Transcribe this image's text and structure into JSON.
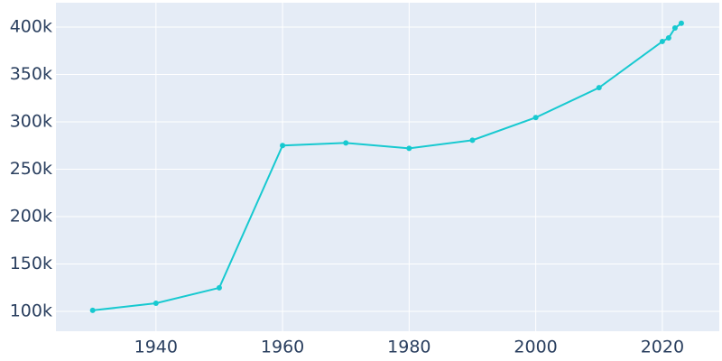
{
  "chart_data": {
    "type": "line",
    "x": [
      1930,
      1940,
      1950,
      1960,
      1970,
      1980,
      1990,
      2000,
      2010,
      2020,
      2021,
      2022,
      2023
    ],
    "series": [
      {
        "color": "#17c9d0",
        "values": [
          101000,
          108500,
          124800,
          275000,
          277700,
          272000,
          280600,
          304500,
          336000,
          384800,
          388600,
          399000,
          404000
        ]
      }
    ],
    "xlim": [
      1924.2,
      2029
    ],
    "xticks": [
      1940,
      1960,
      1980,
      2000,
      2020
    ],
    "ylim": [
      79000,
      425700
    ],
    "yticks": [
      {
        "value": 100000,
        "label": "100k"
      },
      {
        "value": 150000,
        "label": "150k"
      },
      {
        "value": 200000,
        "label": "200k"
      },
      {
        "value": 250000,
        "label": "250k"
      },
      {
        "value": 300000,
        "label": "300k"
      },
      {
        "value": 350000,
        "label": "350k"
      },
      {
        "value": 400000,
        "label": "400k"
      }
    ],
    "grid": true
  }
}
